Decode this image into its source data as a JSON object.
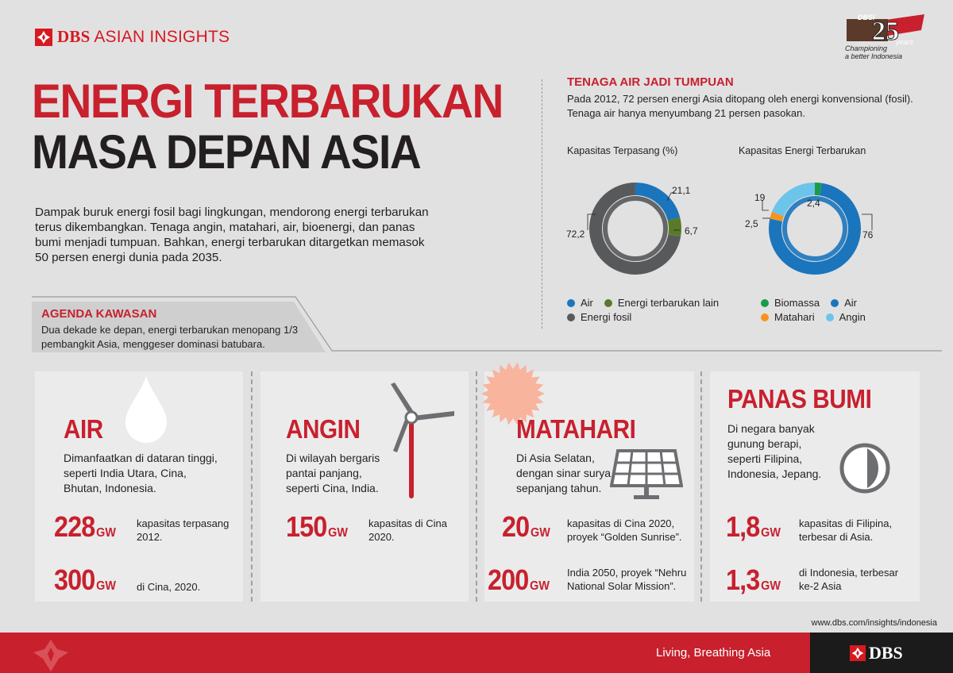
{
  "header": {
    "brand_name": "DBS",
    "brand_suffix": "ASIAN INSIGHTS",
    "anniversary_top": "DBSI",
    "anniversary_years": "years",
    "anniversary_tagline1": "Championing",
    "anniversary_tagline2": "a better Indonesia"
  },
  "title": {
    "line1": "ENERGI TERBARUKAN",
    "line2": "MASA DEPAN ASIA"
  },
  "intro": "Dampak buruk energi fosil bagi lingkungan, mendorong energi terbarukan terus dikembangkan. Tenaga angin, matahari, air, bioenergi, dan panas bumi menjadi tumpuan. Bahkan, energi terbarukan ditargetkan memasok 50 persen energi dunia pada 2035.",
  "agenda": {
    "title": "AGENDA KAWASAN",
    "text": "Dua dekade ke depan, energi terbarukan menopang 1/3 pembangkit Asia, menggeser dominasi batubara."
  },
  "section": {
    "title": "TENAGA AIR JADI TUMPUAN",
    "text": "Pada 2012, 72 persen energi Asia ditopang oleh energi konvensional (fosil). Tenaga air hanya menyumbang 21 persen pasokan."
  },
  "colors": {
    "red": "#c8202d",
    "air": "#1b75bc",
    "other": "#5a7a2a",
    "fossil": "#58595b",
    "biomassa": "#1a9b48",
    "matahari": "#f7941d",
    "angin": "#6cc4ea",
    "card_bg": "#ebebec"
  },
  "chart_data": [
    {
      "type": "pie",
      "title": "Kapasitas Terpasang  (%)",
      "categories": [
        "Air",
        "Energi terbarukan lain",
        "Energi fosil"
      ],
      "values": [
        21.1,
        6.7,
        72.2
      ],
      "labels": [
        "21,1",
        "6,7",
        "72,2"
      ]
    },
    {
      "type": "pie",
      "title": "Kapasitas Energi Terbarukan",
      "categories": [
        "Biomassa",
        "Air",
        "Matahari",
        "Angin"
      ],
      "values": [
        2.4,
        76,
        2.5,
        19
      ],
      "labels": [
        "2,4",
        "76",
        "2,5",
        "19"
      ]
    }
  ],
  "legend1": [
    {
      "label": "Air",
      "color": "#1b75bc"
    },
    {
      "label": "Energi terbarukan lain",
      "color": "#5a7a2a"
    },
    {
      "label": "Energi fosil",
      "color": "#58595b"
    }
  ],
  "legend2": [
    {
      "label": "Biomassa",
      "color": "#1a9b48"
    },
    {
      "label": "Air",
      "color": "#1b75bc"
    },
    {
      "label": "Matahari",
      "color": "#f7941d"
    },
    {
      "label": "Angin",
      "color": "#6cc4ea"
    }
  ],
  "cards": [
    {
      "title": "AIR",
      "icon": "water-drop-icon",
      "text": "Dimanfaatkan di dataran tinggi, seperti India Utara, Cina, Bhutan, Indonesia.",
      "stats": [
        {
          "num": "228",
          "unit": "GW",
          "desc": "kapasitas terpasang 2012."
        },
        {
          "num": "300",
          "unit": "GW",
          "desc": "di Cina, 2020."
        }
      ]
    },
    {
      "title": "ANGIN",
      "icon": "wind-turbine-icon",
      "text": "Di wilayah bergaris pantai panjang, seperti Cina, India.",
      "stats": [
        {
          "num": "150",
          "unit": "GW",
          "desc": "kapasitas di Cina 2020."
        }
      ]
    },
    {
      "title": "MATAHARI",
      "icon": "solar-panel-icon",
      "text": "Di Asia Selatan, dengan sinar surya sepanjang tahun.",
      "stats": [
        {
          "num": "20",
          "unit": "GW",
          "desc": "kapasitas di Cina 2020, proyek “Golden Sunrise”."
        },
        {
          "num": "200",
          "unit": "GW",
          "desc": "India 2050, proyek “Nehru National Solar Mission”."
        }
      ]
    },
    {
      "title": "PANAS BUMI",
      "icon": "geothermal-icon",
      "text": "Di negara banyak gunung berapi, seperti Filipina, Indonesia, Jepang.",
      "stats": [
        {
          "num": "1,8",
          "unit": "GW",
          "desc": "kapasitas di Filipina, terbesar di Asia."
        },
        {
          "num": "1,3",
          "unit": "GW",
          "desc": "di Indonesia, terbesar ke-2 Asia"
        }
      ]
    }
  ],
  "footer": {
    "url": "www.dbs.com/insights/indonesia",
    "tagline": "Living, Breathing Asia",
    "brand": "DBS"
  }
}
